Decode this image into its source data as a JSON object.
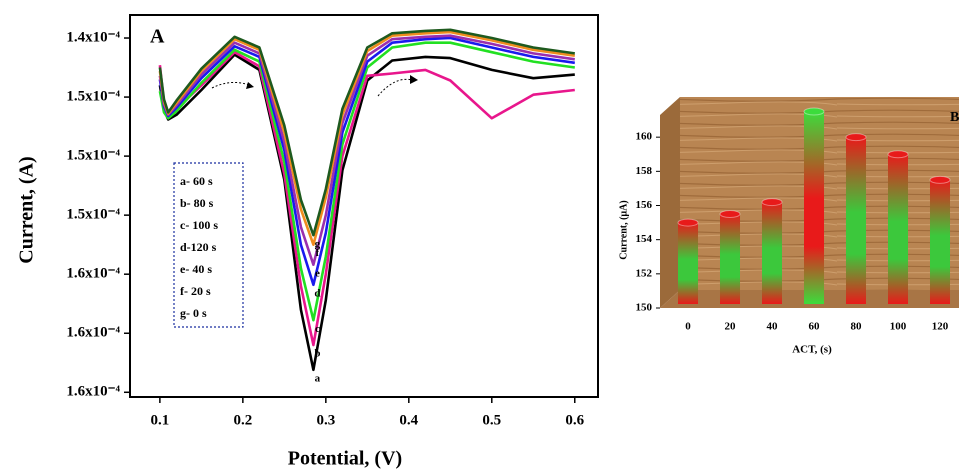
{
  "chart_data": [
    {
      "type": "line",
      "panel_label": "A",
      "x_label": "Potential, (V)",
      "y_label": "Current, (A)",
      "x": [
        0.1,
        0.105,
        0.11,
        0.12,
        0.15,
        0.19,
        0.22,
        0.25,
        0.27,
        0.285,
        0.3,
        0.32,
        0.35,
        0.38,
        0.42,
        0.45,
        0.5,
        0.55,
        0.6
      ],
      "xlim": [
        0.064,
        0.628
      ],
      "xticks": [
        0.1,
        0.2,
        0.3,
        0.4,
        0.5,
        0.6
      ],
      "ylim": [
        0.0001704,
        0.00013805
      ],
      "yticks": [
        {
          "value": 0.00014,
          "label": "1.4x10⁻⁴"
        },
        {
          "value": 0.000145,
          "label": "1.5x10⁻⁴"
        },
        {
          "value": 0.00015,
          "label": "1.5x10⁻⁴"
        },
        {
          "value": 0.000155,
          "label": "1.5x10⁻⁴"
        },
        {
          "value": 0.00016,
          "label": "1.6x10⁻⁴"
        },
        {
          "value": 0.000165,
          "label": "1.6x10⁻⁴"
        },
        {
          "value": 0.00017,
          "label": "1.6x10⁻⁴"
        }
      ],
      "series": [
        {
          "name": "a- 60 s",
          "color": "#000000",
          "values": [
            0.000144,
            0.0001461,
            0.0001469,
            0.0001465,
            0.0001444,
            0.0001414,
            0.0001427,
            0.000152,
            0.000163,
            0.0001681,
            0.0001622,
            0.0001512,
            0.0001436,
            0.0001419,
            0.0001416,
            0.0001417,
            0.0001427,
            0.0001434,
            0.0001431
          ]
        },
        {
          "name": "b- 80 s",
          "color": "#e8168c",
          "values": [
            0.0001423,
            0.0001455,
            0.0001466,
            0.000146,
            0.000144,
            0.0001412,
            0.0001424,
            0.0001515,
            0.000161,
            0.000166,
            0.00016,
            0.00015,
            0.0001432,
            0.000143,
            0.0001427,
            0.0001436,
            0.0001468,
            0.0001448,
            0.0001444
          ]
        },
        {
          "name": "c- 100 s",
          "color": "#22e022",
          "values": [
            0.0001445,
            0.0001463,
            0.0001468,
            0.0001462,
            0.0001438,
            0.000141,
            0.000142,
            0.0001505,
            0.0001595,
            0.0001639,
            0.0001585,
            0.000149,
            0.0001425,
            0.0001408,
            0.0001404,
            0.0001404,
            0.0001412,
            0.000142,
            0.0001425
          ]
        },
        {
          "name": "d-120 s",
          "color": "#1a1aee",
          "values": [
            0.0001435,
            0.0001458,
            0.0001466,
            0.0001459,
            0.0001434,
            0.0001407,
            0.0001416,
            0.0001495,
            0.0001575,
            0.0001609,
            0.0001565,
            0.000148,
            0.000142,
            0.0001404,
            0.0001401,
            0.00014,
            0.0001408,
            0.0001416,
            0.0001421
          ]
        },
        {
          "name": "e- 40 s",
          "color": "#9b2fae",
          "values": [
            0.0001432,
            0.0001456,
            0.0001465,
            0.0001457,
            0.0001431,
            0.0001404,
            0.0001413,
            0.0001488,
            0.000156,
            0.0001592,
            0.000155,
            0.0001472,
            0.0001415,
            0.0001401,
            0.0001399,
            0.0001398,
            0.0001405,
            0.0001413,
            0.0001418
          ]
        },
        {
          "name": "f- 20 s",
          "color": "#f08c1e",
          "values": [
            0.0001428,
            0.0001454,
            0.0001464,
            0.0001455,
            0.0001428,
            0.0001401,
            0.000141,
            0.000148,
            0.0001545,
            0.0001575,
            0.0001535,
            0.0001465,
            0.0001411,
            0.0001398,
            0.0001396,
            0.0001395,
            0.0001402,
            0.000141,
            0.0001415
          ]
        },
        {
          "name": "g- 0 s",
          "color": "#1e5a1e",
          "values": [
            0.0001425,
            0.0001452,
            0.0001463,
            0.0001453,
            0.0001426,
            0.0001399,
            0.0001408,
            0.0001474,
            0.0001537,
            0.0001567,
            0.0001528,
            0.000146,
            0.0001408,
            0.0001396,
            0.0001394,
            0.0001393,
            0.00014,
            0.0001408,
            0.0001413
          ]
        }
      ],
      "curve_labels": [
        "a",
        "b",
        "c",
        "d",
        "e",
        "f",
        "g"
      ]
    },
    {
      "type": "bar3d",
      "panel_label": "B",
      "x_label": "ACT, (s)",
      "y_label": "Current, (µA)",
      "categories": [
        "0",
        "20",
        "40",
        "60",
        "80",
        "100",
        "120"
      ],
      "values": [
        155.0,
        155.5,
        156.2,
        161.5,
        160.0,
        159.0,
        157.5
      ],
      "colors": [
        "#e81a1a",
        "#e81a1a",
        "#e81a1a",
        "#3cdc3c",
        "#e81a1a",
        "#e81a1a",
        "#e81a1a"
      ],
      "accent_colors": [
        "#3cc83c",
        "#3cc83c",
        "#3cc83c",
        "#e81a1a",
        "#3cc83c",
        "#3cc83c",
        "#3cc83c"
      ],
      "ylim": [
        150,
        162
      ],
      "yticks": [
        150,
        152,
        154,
        156,
        158,
        160
      ]
    }
  ]
}
